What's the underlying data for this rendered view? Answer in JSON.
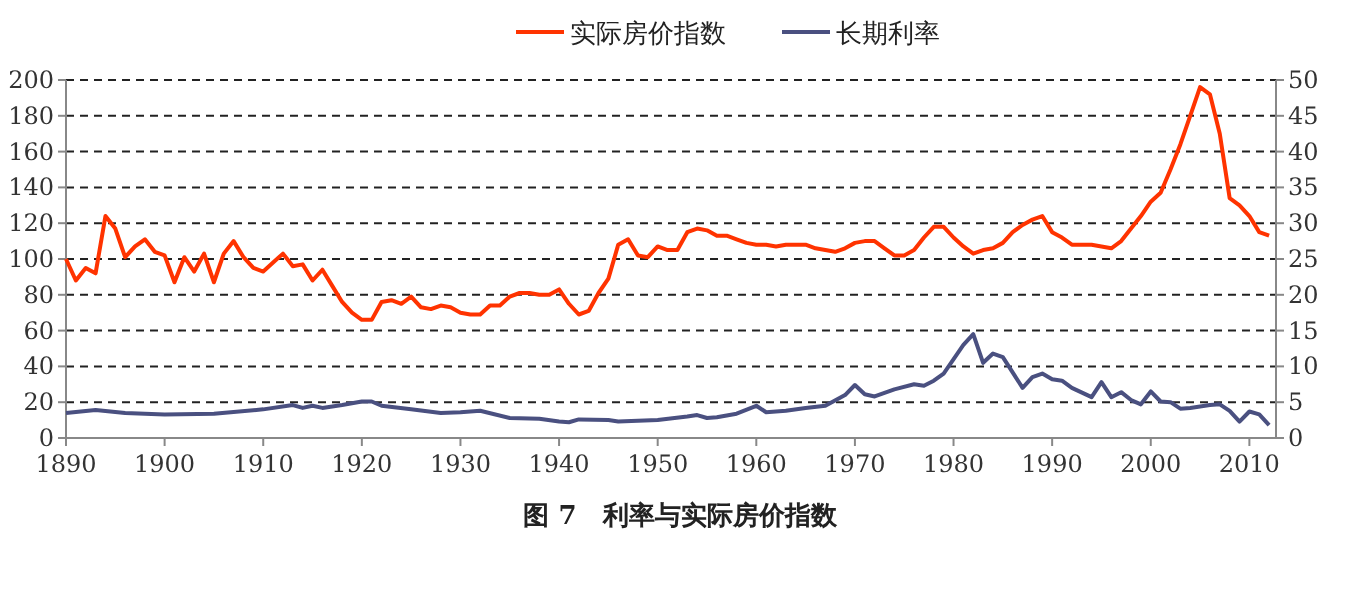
{
  "chart_data": {
    "type": "line",
    "title": "图 7　利率与实际房价指数",
    "xlim": [
      1890,
      2012.7
    ],
    "xticks": [
      1890,
      1900,
      1910,
      1920,
      1930,
      1940,
      1950,
      1960,
      1970,
      1980,
      1990,
      2000,
      2010
    ],
    "ylim": [
      0,
      200
    ],
    "yticks": [
      0,
      20,
      40,
      60,
      80,
      100,
      120,
      140,
      160,
      180,
      200
    ],
    "y2lim": [
      0,
      50
    ],
    "y2ticks": [
      0,
      5,
      10,
      15,
      20,
      25,
      30,
      35,
      40,
      45,
      50
    ],
    "grid": "y",
    "legend": "top",
    "series": [
      {
        "name": "实际房价指数",
        "color": "#ff3300",
        "x": [
          1890,
          1891,
          1892,
          1893,
          1894,
          1895,
          1896,
          1897,
          1898,
          1899,
          1900,
          1901,
          1902,
          1903,
          1904,
          1905,
          1906,
          1907,
          1908,
          1909,
          1910,
          1911,
          1912,
          1913,
          1914,
          1915,
          1916,
          1917,
          1918,
          1919,
          1920,
          1921,
          1922,
          1923,
          1924,
          1925,
          1926,
          1927,
          1928,
          1929,
          1930,
          1931,
          1932,
          1933,
          1934,
          1935,
          1936,
          1937,
          1938,
          1939,
          1940,
          1941,
          1942,
          1943,
          1944,
          1945,
          1946,
          1947,
          1948,
          1949,
          1950,
          1951,
          1952,
          1953,
          1954,
          1955,
          1956,
          1957,
          1958,
          1959,
          1960,
          1961,
          1962,
          1963,
          1964,
          1965,
          1966,
          1967,
          1968,
          1969,
          1970,
          1971,
          1972,
          1973,
          1974,
          1975,
          1976,
          1977,
          1978,
          1979,
          1980,
          1981,
          1982,
          1983,
          1984,
          1985,
          1986,
          1987,
          1988,
          1989,
          1990,
          1991,
          1992,
          1993,
          1994,
          1995,
          1996,
          1997,
          1998,
          1999,
          2000,
          2001,
          2002,
          2003,
          2004,
          2005,
          2006,
          2007,
          2008,
          2009,
          2010,
          2011,
          2012
        ],
        "values": [
          100,
          88,
          95,
          92,
          124,
          117,
          101,
          107,
          111,
          104,
          102,
          87,
          101,
          93,
          103,
          87,
          103,
          110,
          101,
          95,
          93,
          98,
          103,
          96,
          97,
          88,
          94,
          85,
          76,
          70,
          66,
          66,
          76,
          77,
          75,
          79,
          73,
          72,
          74,
          73,
          70,
          69,
          69,
          74,
          74,
          79,
          81,
          81,
          80,
          80,
          83,
          75,
          69,
          71,
          81,
          89,
          108,
          111,
          102,
          101,
          107,
          105,
          105,
          115,
          117,
          116,
          113,
          113,
          111,
          109,
          108,
          108,
          107,
          108,
          108,
          108,
          106,
          105,
          104,
          106,
          109,
          110,
          110,
          106,
          102,
          102,
          105,
          112,
          118,
          118,
          112,
          107,
          103,
          105,
          106,
          109,
          115,
          119,
          122,
          124,
          115,
          112,
          108,
          108,
          108,
          107,
          106,
          110,
          117,
          124,
          132,
          137,
          150,
          164,
          180,
          196,
          192,
          170,
          134,
          130,
          124,
          115,
          113
        ]
      },
      {
        "name": "长期利率",
        "color": "#4a5080",
        "axis": "y2",
        "x": [
          1890,
          1893,
          1896,
          1900,
          1905,
          1910,
          1913,
          1914,
          1915,
          1916,
          1918,
          1920,
          1921,
          1922,
          1925,
          1928,
          1930,
          1932,
          1935,
          1938,
          1940,
          1941,
          1942,
          1945,
          1946,
          1950,
          1953,
          1954,
          1955,
          1956,
          1958,
          1960,
          1961,
          1963,
          1965,
          1967,
          1969,
          1970,
          1971,
          1972,
          1974,
          1976,
          1977,
          1978,
          1979,
          1981,
          1982,
          1983,
          1984,
          1985,
          1987,
          1988,
          1989,
          1990,
          1991,
          1992,
          1994,
          1995,
          1996,
          1997,
          1998,
          1999,
          2000,
          2001,
          2002,
          2003,
          2004,
          2006,
          2007,
          2008,
          2009,
          2010,
          2011,
          2012
        ],
        "values": [
          3.5,
          3.9,
          3.5,
          3.3,
          3.4,
          4,
          4.6,
          4.2,
          4.5,
          4.2,
          4.6,
          5.1,
          5.1,
          4.5,
          4,
          3.5,
          3.6,
          3.8,
          2.8,
          2.7,
          2.3,
          2.2,
          2.6,
          2.5,
          2.3,
          2.5,
          3,
          3.2,
          2.8,
          2.9,
          3.4,
          4.5,
          3.6,
          3.8,
          4.2,
          4.5,
          6,
          7.4,
          6.1,
          5.8,
          6.8,
          7.5,
          7.3,
          8,
          9,
          13,
          14.5,
          10.5,
          11.8,
          11.3,
          7,
          8.5,
          9,
          8.2,
          8,
          7,
          5.7,
          7.8,
          5.7,
          6.4,
          5.3,
          4.7,
          6.5,
          5.1,
          5,
          4.1,
          4.2,
          4.6,
          4.7,
          3.8,
          2.3,
          3.7,
          3.3,
          1.8
        ]
      }
    ]
  }
}
